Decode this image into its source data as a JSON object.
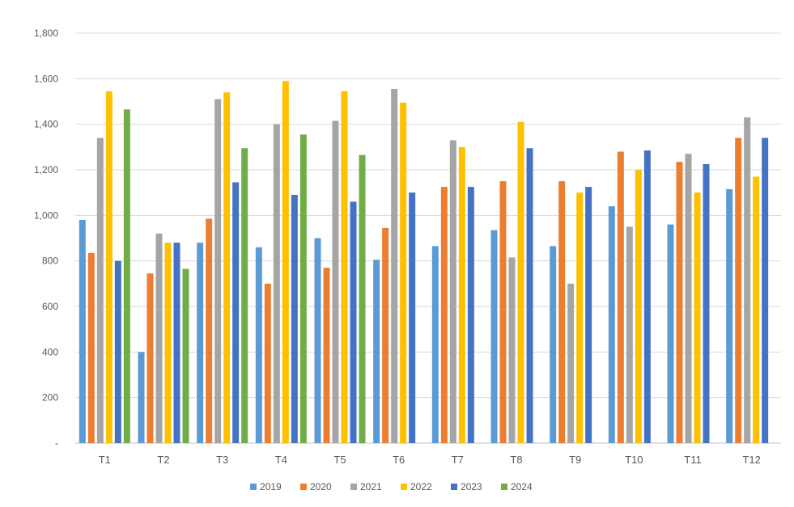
{
  "chart_data": {
    "type": "bar",
    "title": "",
    "xlabel": "",
    "ylabel": "",
    "categories": [
      "T1",
      "T2",
      "T3",
      "T4",
      "T5",
      "T6",
      "T7",
      "T8",
      "T9",
      "T10",
      "T11",
      "T12"
    ],
    "ylim": [
      0,
      1800
    ],
    "yticks": [
      0,
      200,
      400,
      600,
      800,
      1000,
      1200,
      1400,
      1600,
      1800
    ],
    "ytick_labels": [
      "-",
      "200",
      "400",
      "600",
      "800",
      "1,000",
      "1,200",
      "1,400",
      "1,600",
      "1,800"
    ],
    "grid": true,
    "legend_position": "bottom",
    "series": [
      {
        "name": "2019",
        "color": "#5B9BD5",
        "values": [
          980,
          400,
          880,
          860,
          900,
          805,
          865,
          935,
          865,
          1040,
          960,
          1115
        ]
      },
      {
        "name": "2020",
        "color": "#ED7D31",
        "values": [
          835,
          745,
          985,
          700,
          770,
          945,
          1125,
          1150,
          1150,
          1280,
          1235,
          1340
        ]
      },
      {
        "name": "2021",
        "color": "#A5A5A5",
        "values": [
          1340,
          920,
          1510,
          1400,
          1415,
          1555,
          1330,
          815,
          700,
          950,
          1270,
          1430
        ]
      },
      {
        "name": "2022",
        "color": "#FFC000",
        "values": [
          1545,
          880,
          1540,
          1590,
          1545,
          1495,
          1300,
          1410,
          1100,
          1200,
          1100,
          1170
        ]
      },
      {
        "name": "2023",
        "color": "#4472C4",
        "values": [
          800,
          880,
          1145,
          1090,
          1060,
          1100,
          1125,
          1295,
          1125,
          1285,
          1225,
          1340
        ]
      },
      {
        "name": "2024",
        "color": "#70AD47",
        "values": [
          1465,
          765,
          1295,
          1355,
          1265,
          null,
          null,
          null,
          null,
          null,
          null,
          null
        ]
      }
    ]
  }
}
